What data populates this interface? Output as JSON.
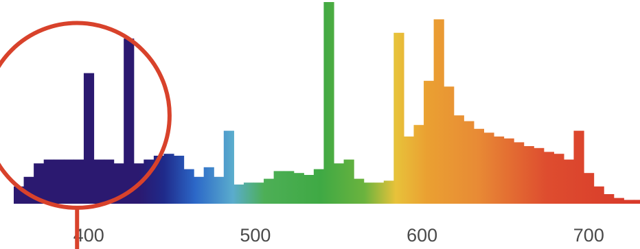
{
  "chart_data": {
    "type": "bar",
    "title": "",
    "xlabel": "",
    "ylabel": "",
    "x_ticks": [
      "400",
      "500",
      "600",
      "700"
    ],
    "xlim": [
      355,
      750
    ],
    "ylim": [
      0,
      100
    ],
    "bar_width_nm": 6,
    "x": [
      358,
      364,
      370,
      376,
      382,
      388,
      394,
      400,
      406,
      412,
      418,
      424,
      430,
      436,
      442,
      448,
      454,
      460,
      466,
      472,
      478,
      484,
      490,
      496,
      502,
      508,
      514,
      520,
      526,
      532,
      538,
      544,
      550,
      556,
      562,
      568,
      574,
      580,
      586,
      592,
      598,
      604,
      610,
      616,
      622,
      628,
      634,
      640,
      646,
      652,
      658,
      664,
      670,
      676,
      682,
      688,
      694,
      700,
      706,
      712,
      718,
      724,
      730,
      736,
      742,
      748
    ],
    "values": [
      9,
      14,
      21,
      23,
      23,
      23,
      23,
      68,
      23,
      23,
      21,
      86,
      21,
      23,
      25,
      26,
      25,
      18,
      14,
      19,
      14,
      38,
      10,
      11,
      11,
      13,
      17,
      17,
      16,
      15,
      18,
      105,
      21,
      23,
      13,
      11,
      11,
      12,
      89,
      35,
      41,
      64,
      96,
      61,
      46,
      43,
      39,
      37,
      35,
      34,
      32,
      30,
      29,
      27,
      26,
      23,
      38,
      16,
      9,
      5,
      3,
      2,
      2,
      2,
      2,
      2
    ],
    "grid": false,
    "legend": "none",
    "annotations": [
      {
        "shape": "circle",
        "center": [
          393,
          46
        ],
        "radius_nm": 37,
        "color": "#d8422b"
      }
    ]
  }
}
